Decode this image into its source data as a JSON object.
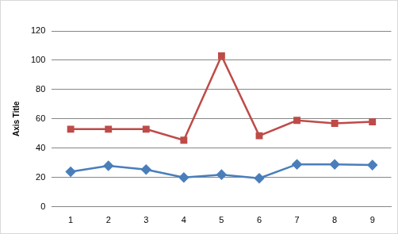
{
  "chart_data": {
    "type": "line",
    "y_label": "Axis Title",
    "categories": [
      "1",
      "2",
      "3",
      "4",
      "5",
      "6",
      "7",
      "8",
      "9"
    ],
    "series": [
      {
        "color": "#4a7ebb",
        "marker": "diamond",
        "values": [
          24,
          28,
          25.5,
          20,
          22,
          19.5,
          29,
          29,
          28.5
        ]
      },
      {
        "color": "#be4b48",
        "marker": "square",
        "values": [
          53,
          53,
          53,
          45.5,
          103,
          48.5,
          59,
          57,
          58
        ]
      }
    ],
    "ylim": [
      0,
      120
    ],
    "yticks": [
      0,
      20,
      40,
      60,
      80,
      100,
      120
    ],
    "grid": true
  }
}
